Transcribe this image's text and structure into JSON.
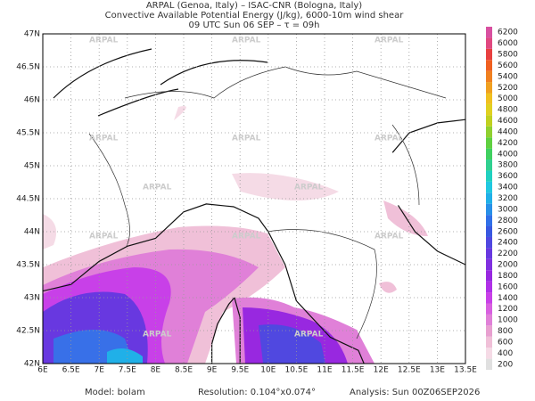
{
  "header": {
    "lines": [
      "ARPAL (Genoa, Italy)  –  ISAC-CNR (Bologna, Italy)",
      "Convective Available Potential Energy (J/kg), 6000-10m wind shear",
      "09 UTC Sun 06 SEP  –  τ = 09h"
    ]
  },
  "watermark": "ARPAL",
  "axes": {
    "lon_labels": [
      "6E",
      "6.5E",
      "7E",
      "7.5E",
      "8E",
      "8.5E",
      "9E",
      "9.5E",
      "10E",
      "10.5E",
      "11E",
      "11.5E",
      "12E",
      "12.5E",
      "13E",
      "13.5E"
    ],
    "lat_labels": [
      "42N",
      "42.5N",
      "43N",
      "43.5N",
      "44N",
      "44.5N",
      "45N",
      "45.5N",
      "46N",
      "46.5N",
      "47N"
    ]
  },
  "legend": {
    "levels": [
      "200",
      "400",
      "600",
      "800",
      "1000",
      "1200",
      "1400",
      "1600",
      "1800",
      "2000",
      "2200",
      "2400",
      "2600",
      "2800",
      "3000",
      "3200",
      "3400",
      "3600",
      "3800",
      "4000",
      "4200",
      "4400",
      "4600",
      "4800",
      "5000",
      "5200",
      "5400",
      "5600",
      "5800",
      "6000",
      "6200"
    ],
    "colors": [
      "#e0e0e0",
      "#f5dbe6",
      "#f0c0d8",
      "#e8a0d0",
      "#e080d8",
      "#d860e0",
      "#c840e8",
      "#b030e8",
      "#9828e0",
      "#8030e0",
      "#6838e0",
      "#5048e0",
      "#3858e0",
      "#3070e8",
      "#2890e8",
      "#20b0e8",
      "#20c8e0",
      "#20d0c0",
      "#30d090",
      "#40d060",
      "#60d040",
      "#90d030",
      "#c0d020",
      "#e0d020",
      "#f0c020",
      "#f0a020",
      "#f08020",
      "#f06020",
      "#e84040",
      "#e04880",
      "#d850a0"
    ]
  },
  "footer": {
    "model": "Model: bolam",
    "resolution": "Resolution: 0.104°x0.074°",
    "analysis": "Analysis: Sun 00Z06SEP2026"
  }
}
